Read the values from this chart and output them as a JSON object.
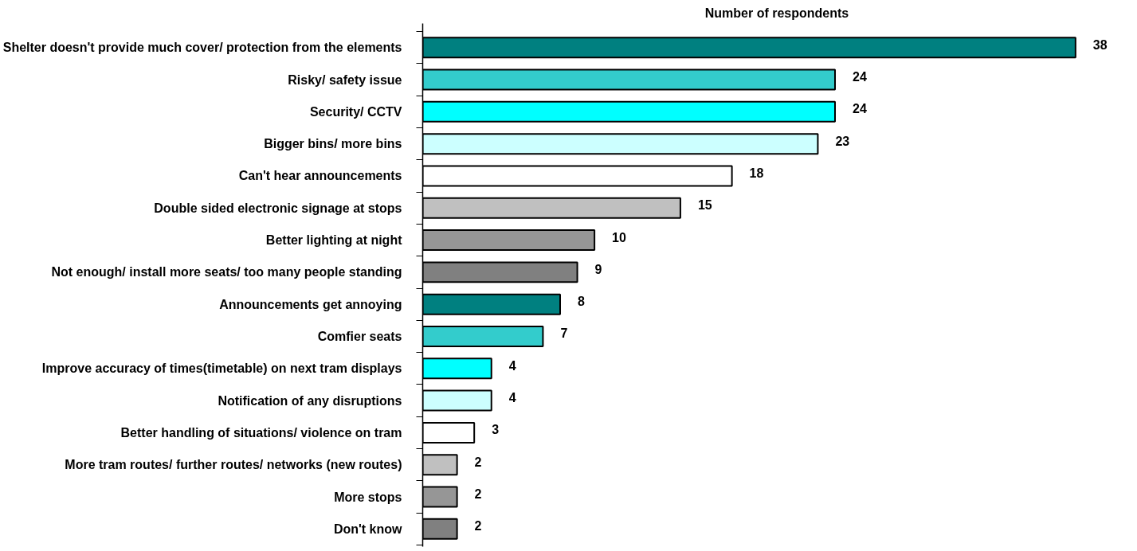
{
  "chart_data": {
    "type": "bar",
    "orientation": "horizontal",
    "title": "Number of respondents",
    "categories": [
      "Shelter doesn't provide much cover/ protection from the elements",
      "Risky/ safety issue",
      "Security/ CCTV",
      "Bigger bins/ more bins",
      "Can't hear announcements",
      "Double sided electronic signage at stops",
      "Better lighting at night",
      "Not enough/ install more seats/ too many people standing",
      "Announcements get annoying",
      "Comfier seats",
      "Improve accuracy of times(timetable) on next tram displays",
      "Notification of any disruptions",
      "Better handling of situations/ violence on tram",
      "More tram routes/ further routes/ networks (new routes)",
      "More stops",
      "Don't know"
    ],
    "values": [
      38,
      24,
      24,
      23,
      18,
      15,
      10,
      9,
      8,
      7,
      4,
      4,
      3,
      2,
      2,
      2
    ],
    "colors": [
      "#008080",
      "#33cccc",
      "#00ffff",
      "#ccffff",
      "#ffffff",
      "#c0c0c0",
      "#969696",
      "#808080",
      "#008080",
      "#33cccc",
      "#00ffff",
      "#ccffff",
      "#ffffff",
      "#c0c0c0",
      "#969696",
      "#808080"
    ],
    "data_labels": true,
    "tick_labels": "y"
  }
}
